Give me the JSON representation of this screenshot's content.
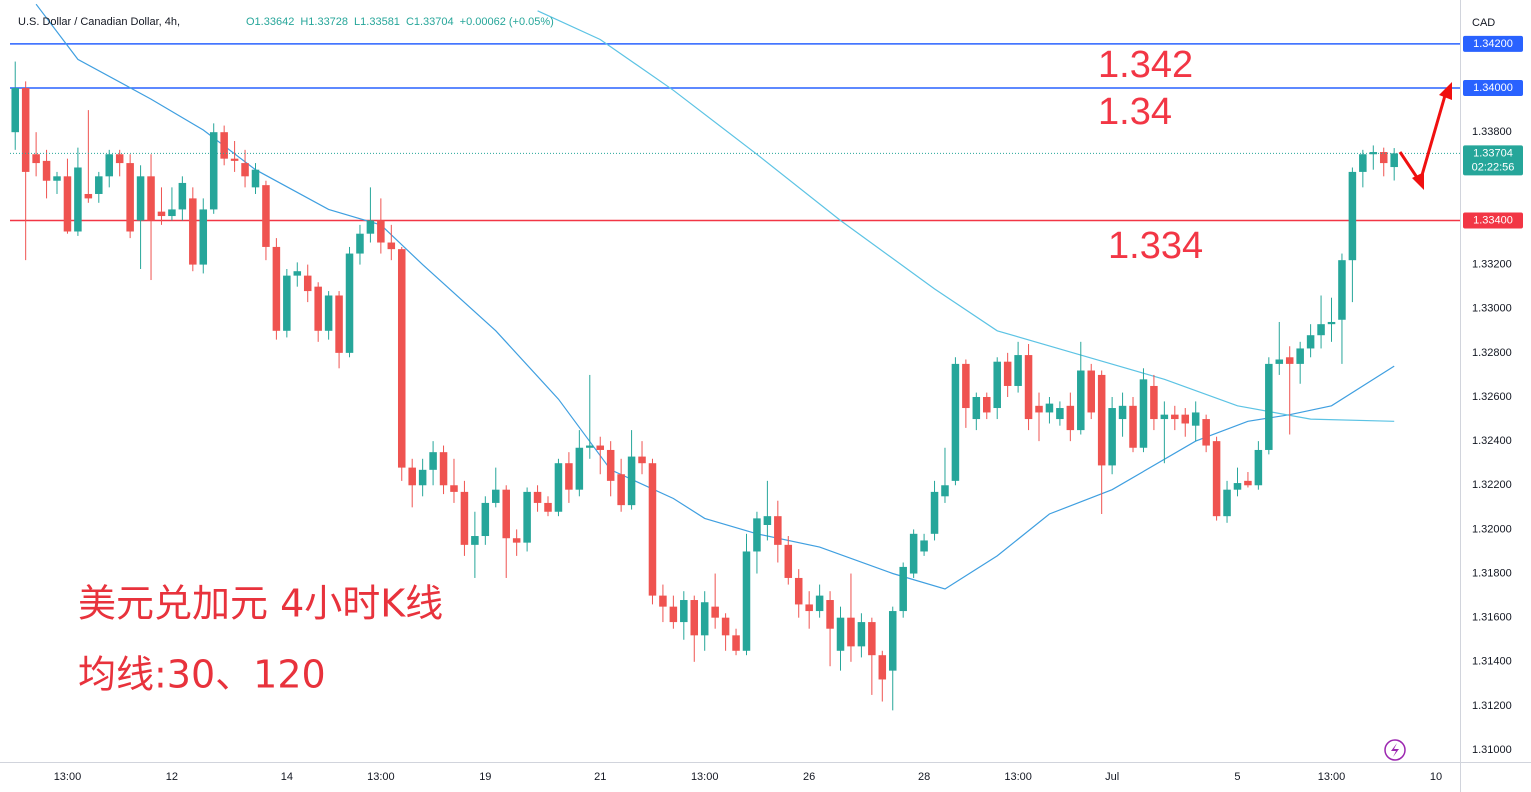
{
  "chart_data": {
    "type": "candlestick",
    "title": "U.S. Dollar / Canadian Dollar, 4h,",
    "ohlc_legend": [
      "O1.33642",
      "H1.33728",
      "L1.33581",
      "C1.33704",
      "+0.00062 (+0.05%)"
    ],
    "currency": "CAD",
    "up_color": "#26a69a",
    "down_color": "#ef5350",
    "ylim": [
      1.30946,
      1.34399
    ],
    "xlim": [
      -0.5,
      138.3
    ],
    "yticks": [
      {
        "value": 1.31,
        "label": "1.31000"
      },
      {
        "value": 1.312,
        "label": "1.31200"
      },
      {
        "value": 1.314,
        "label": "1.31400"
      },
      {
        "value": 1.316,
        "label": "1.31600"
      },
      {
        "value": 1.318,
        "label": "1.31800"
      },
      {
        "value": 1.32,
        "label": "1.32000"
      },
      {
        "value": 1.322,
        "label": "1.32200"
      },
      {
        "value": 1.324,
        "label": "1.32400"
      },
      {
        "value": 1.326,
        "label": "1.32600"
      },
      {
        "value": 1.328,
        "label": "1.32800"
      },
      {
        "value": 1.33,
        "label": "1.33000"
      },
      {
        "value": 1.332,
        "label": "1.33200"
      },
      {
        "value": 1.338,
        "label": "1.33800"
      }
    ],
    "xticks": [
      {
        "value": 5,
        "label": "13:00"
      },
      {
        "value": 15,
        "label": "12"
      },
      {
        "value": 26,
        "label": "14"
      },
      {
        "value": 35,
        "label": "13:00"
      },
      {
        "value": 45,
        "label": "19"
      },
      {
        "value": 56,
        "label": "21"
      },
      {
        "value": 66,
        "label": "13:00"
      },
      {
        "value": 76,
        "label": "26"
      },
      {
        "value": 87,
        "label": "28"
      },
      {
        "value": 96,
        "label": "13:00"
      },
      {
        "value": 105,
        "label": "Jul"
      },
      {
        "value": 117,
        "label": "5"
      },
      {
        "value": 126,
        "label": "13:00"
      },
      {
        "value": 136,
        "label": "10"
      }
    ],
    "hlines": [
      {
        "value": 1.342,
        "label": "1.34200",
        "color": "#2962ff"
      },
      {
        "value": 1.34,
        "label": "1.34000",
        "color": "#2962ff"
      },
      {
        "value": 1.334,
        "label": "1.33400",
        "color": "#f23645"
      }
    ],
    "last": {
      "value": 1.33704,
      "label": "1.33704",
      "countdown": "02:22:56",
      "color": "#26a69a"
    },
    "annotations": [
      "1.342",
      "1.34",
      "1.334",
      "美元兑加元 4小时K线",
      "均线:30、120"
    ],
    "ohlc": [
      [
        1.338,
        1.3412,
        1.3372,
        1.34
      ],
      [
        1.34,
        1.3403,
        1.3322,
        1.3362
      ],
      [
        1.337,
        1.338,
        1.336,
        1.3366
      ],
      [
        1.3367,
        1.3372,
        1.335,
        1.3358
      ],
      [
        1.3358,
        1.3362,
        1.3352,
        1.336
      ],
      [
        1.336,
        1.3368,
        1.3334,
        1.3335
      ],
      [
        1.3335,
        1.3373,
        1.3333,
        1.3364
      ],
      [
        1.3352,
        1.339,
        1.3348,
        1.335
      ],
      [
        1.3352,
        1.3362,
        1.3348,
        1.336
      ],
      [
        1.336,
        1.3372,
        1.3355,
        1.337
      ],
      [
        1.337,
        1.3372,
        1.336,
        1.3366
      ],
      [
        1.3366,
        1.337,
        1.3332,
        1.3335
      ],
      [
        1.334,
        1.3365,
        1.3318,
        1.336
      ],
      [
        1.336,
        1.337,
        1.3313,
        1.334
      ],
      [
        1.3344,
        1.3355,
        1.3338,
        1.3342
      ],
      [
        1.3342,
        1.3355,
        1.334,
        1.3345
      ],
      [
        1.3345,
        1.336,
        1.334,
        1.3357
      ],
      [
        1.335,
        1.3355,
        1.3317,
        1.332
      ],
      [
        1.332,
        1.335,
        1.3316,
        1.3345
      ],
      [
        1.3345,
        1.3384,
        1.3343,
        1.338
      ],
      [
        1.338,
        1.3383,
        1.3365,
        1.3368
      ],
      [
        1.3368,
        1.3376,
        1.3362,
        1.3367
      ],
      [
        1.3366,
        1.3372,
        1.3355,
        1.336
      ],
      [
        1.3355,
        1.3366,
        1.3352,
        1.3363
      ],
      [
        1.3356,
        1.3358,
        1.3322,
        1.3328
      ],
      [
        1.3328,
        1.3332,
        1.3286,
        1.329
      ],
      [
        1.329,
        1.3318,
        1.3287,
        1.3315
      ],
      [
        1.3315,
        1.3321,
        1.331,
        1.3317
      ],
      [
        1.3315,
        1.332,
        1.3303,
        1.3308
      ],
      [
        1.331,
        1.3312,
        1.3285,
        1.329
      ],
      [
        1.329,
        1.3308,
        1.3286,
        1.3306
      ],
      [
        1.3306,
        1.3308,
        1.3273,
        1.328
      ],
      [
        1.328,
        1.3328,
        1.3278,
        1.3325
      ],
      [
        1.3325,
        1.3338,
        1.332,
        1.3334
      ],
      [
        1.3334,
        1.3355,
        1.333,
        1.334
      ],
      [
        1.334,
        1.335,
        1.3325,
        1.333
      ],
      [
        1.333,
        1.3338,
        1.3322,
        1.3327
      ],
      [
        1.3327,
        1.3328,
        1.3222,
        1.3228
      ],
      [
        1.3228,
        1.3232,
        1.321,
        1.322
      ],
      [
        1.322,
        1.3232,
        1.3215,
        1.3227
      ],
      [
        1.3227,
        1.324,
        1.322,
        1.3235
      ],
      [
        1.3235,
        1.3238,
        1.3216,
        1.322
      ],
      [
        1.322,
        1.3232,
        1.3212,
        1.3217
      ],
      [
        1.3217,
        1.3222,
        1.3188,
        1.3193
      ],
      [
        1.3193,
        1.3208,
        1.3178,
        1.3197
      ],
      [
        1.3197,
        1.3215,
        1.3193,
        1.3212
      ],
      [
        1.3212,
        1.3228,
        1.321,
        1.3218
      ],
      [
        1.3218,
        1.322,
        1.3178,
        1.3196
      ],
      [
        1.3196,
        1.32,
        1.3188,
        1.3194
      ],
      [
        1.3194,
        1.3219,
        1.319,
        1.3217
      ],
      [
        1.3217,
        1.322,
        1.3208,
        1.3212
      ],
      [
        1.3212,
        1.3215,
        1.3206,
        1.3208
      ],
      [
        1.3208,
        1.3232,
        1.3206,
        1.323
      ],
      [
        1.323,
        1.3235,
        1.3212,
        1.3218
      ],
      [
        1.3218,
        1.3245,
        1.3215,
        1.3237
      ],
      [
        1.3237,
        1.327,
        1.3232,
        1.3238
      ],
      [
        1.3238,
        1.3242,
        1.3225,
        1.3236
      ],
      [
        1.3236,
        1.324,
        1.3215,
        1.3222
      ],
      [
        1.3225,
        1.3232,
        1.3208,
        1.3211
      ],
      [
        1.3211,
        1.3245,
        1.3209,
        1.3233
      ],
      [
        1.3233,
        1.324,
        1.3225,
        1.323
      ],
      [
        1.323,
        1.3232,
        1.3166,
        1.317
      ],
      [
        1.317,
        1.3175,
        1.3158,
        1.3165
      ],
      [
        1.3165,
        1.317,
        1.3155,
        1.3158
      ],
      [
        1.3158,
        1.3172,
        1.315,
        1.3168
      ],
      [
        1.3168,
        1.317,
        1.314,
        1.3152
      ],
      [
        1.3152,
        1.3172,
        1.3145,
        1.3167
      ],
      [
        1.3165,
        1.318,
        1.3155,
        1.316
      ],
      [
        1.316,
        1.3162,
        1.3145,
        1.3152
      ],
      [
        1.3152,
        1.3155,
        1.3143,
        1.3145
      ],
      [
        1.3145,
        1.3198,
        1.3143,
        1.319
      ],
      [
        1.319,
        1.3208,
        1.318,
        1.3205
      ],
      [
        1.3202,
        1.3222,
        1.3195,
        1.3206
      ],
      [
        1.3206,
        1.3213,
        1.3185,
        1.3193
      ],
      [
        1.3193,
        1.3197,
        1.3175,
        1.3178
      ],
      [
        1.3178,
        1.3182,
        1.316,
        1.3166
      ],
      [
        1.3166,
        1.3172,
        1.3155,
        1.3163
      ],
      [
        1.3163,
        1.3175,
        1.316,
        1.317
      ],
      [
        1.3168,
        1.3172,
        1.3138,
        1.3155
      ],
      [
        1.3145,
        1.3165,
        1.3136,
        1.316
      ],
      [
        1.316,
        1.318,
        1.314,
        1.3147
      ],
      [
        1.3147,
        1.3162,
        1.3142,
        1.3158
      ],
      [
        1.3158,
        1.316,
        1.3125,
        1.3143
      ],
      [
        1.3143,
        1.3145,
        1.3122,
        1.3132
      ],
      [
        1.3136,
        1.3165,
        1.3118,
        1.3163
      ],
      [
        1.3163,
        1.3185,
        1.316,
        1.3183
      ],
      [
        1.318,
        1.32,
        1.3178,
        1.3198
      ],
      [
        1.319,
        1.3198,
        1.3188,
        1.3195
      ],
      [
        1.3198,
        1.3222,
        1.3195,
        1.3217
      ],
      [
        1.3215,
        1.3237,
        1.3212,
        1.322
      ],
      [
        1.3222,
        1.3278,
        1.322,
        1.3275
      ],
      [
        1.3275,
        1.3277,
        1.3246,
        1.3255
      ],
      [
        1.325,
        1.3262,
        1.3245,
        1.326
      ],
      [
        1.326,
        1.3262,
        1.325,
        1.3253
      ],
      [
        1.3255,
        1.3278,
        1.325,
        1.3276
      ],
      [
        1.3276,
        1.328,
        1.326,
        1.3265
      ],
      [
        1.3265,
        1.3285,
        1.3262,
        1.3279
      ],
      [
        1.3279,
        1.3284,
        1.3245,
        1.325
      ],
      [
        1.3256,
        1.3262,
        1.324,
        1.3253
      ],
      [
        1.3253,
        1.326,
        1.3248,
        1.3257
      ],
      [
        1.325,
        1.3258,
        1.3247,
        1.3255
      ],
      [
        1.3256,
        1.3262,
        1.324,
        1.3245
      ],
      [
        1.3245,
        1.3285,
        1.3243,
        1.3272
      ],
      [
        1.3272,
        1.3275,
        1.325,
        1.3253
      ],
      [
        1.327,
        1.3272,
        1.3207,
        1.3229
      ],
      [
        1.3229,
        1.326,
        1.3225,
        1.3255
      ],
      [
        1.325,
        1.3262,
        1.3242,
        1.3256
      ],
      [
        1.3256,
        1.326,
        1.3235,
        1.3237
      ],
      [
        1.3237,
        1.3273,
        1.3235,
        1.3268
      ],
      [
        1.3265,
        1.327,
        1.3245,
        1.325
      ],
      [
        1.325,
        1.3258,
        1.323,
        1.3252
      ],
      [
        1.3252,
        1.3256,
        1.3245,
        1.325
      ],
      [
        1.3252,
        1.3255,
        1.3242,
        1.3248
      ],
      [
        1.3247,
        1.3258,
        1.324,
        1.3253
      ],
      [
        1.325,
        1.3252,
        1.3235,
        1.3238
      ],
      [
        1.324,
        1.3242,
        1.3204,
        1.3206
      ],
      [
        1.3206,
        1.3222,
        1.3203,
        1.3218
      ],
      [
        1.3218,
        1.3228,
        1.3215,
        1.3221
      ],
      [
        1.3222,
        1.3226,
        1.3219,
        1.322
      ],
      [
        1.322,
        1.324,
        1.3218,
        1.3236
      ],
      [
        1.3236,
        1.3278,
        1.3234,
        1.3275
      ],
      [
        1.3275,
        1.3294,
        1.327,
        1.3277
      ],
      [
        1.3278,
        1.3283,
        1.3243,
        1.3275
      ],
      [
        1.3275,
        1.3285,
        1.3266,
        1.3282
      ],
      [
        1.3282,
        1.3293,
        1.3278,
        1.3288
      ],
      [
        1.3288,
        1.3306,
        1.3282,
        1.3293
      ],
      [
        1.3293,
        1.3305,
        1.3285,
        1.3294
      ],
      [
        1.3295,
        1.3325,
        1.3275,
        1.3322
      ],
      [
        1.3322,
        1.3364,
        1.3303,
        1.3362
      ],
      [
        1.3362,
        1.3372,
        1.3355,
        1.337
      ],
      [
        1.337,
        1.3374,
        1.3363,
        1.3371
      ],
      [
        1.3371,
        1.3373,
        1.336,
        1.3366
      ],
      [
        1.33642,
        1.33728,
        1.33581,
        1.33704
      ]
    ],
    "series": [
      {
        "color": "#3f9fe0",
        "x": [
          2,
          6,
          13,
          18,
          23,
          30,
          35,
          39,
          46,
          52,
          57,
          63,
          66,
          71,
          77,
          84,
          89,
          94,
          99,
          105,
          113,
          118,
          122,
          126,
          132
        ],
        "values": [
          1.3438,
          1.3413,
          1.3395,
          1.3381,
          1.3363,
          1.3345,
          1.3338,
          1.332,
          1.329,
          1.3259,
          1.3227,
          1.3214,
          1.3205,
          1.3198,
          1.3192,
          1.318,
          1.3173,
          1.3188,
          1.3207,
          1.3218,
          1.324,
          1.3249,
          1.3252,
          1.3256,
          1.3274
        ]
      },
      {
        "color": "#5cc3e4",
        "x": [
          50,
          56,
          63,
          71,
          79,
          88,
          94,
          102,
          110,
          117,
          124,
          132
        ],
        "values": [
          1.3435,
          1.3422,
          1.3399,
          1.337,
          1.334,
          1.3309,
          1.329,
          1.3279,
          1.3268,
          1.3256,
          1.325,
          1.3249
        ]
      }
    ]
  }
}
